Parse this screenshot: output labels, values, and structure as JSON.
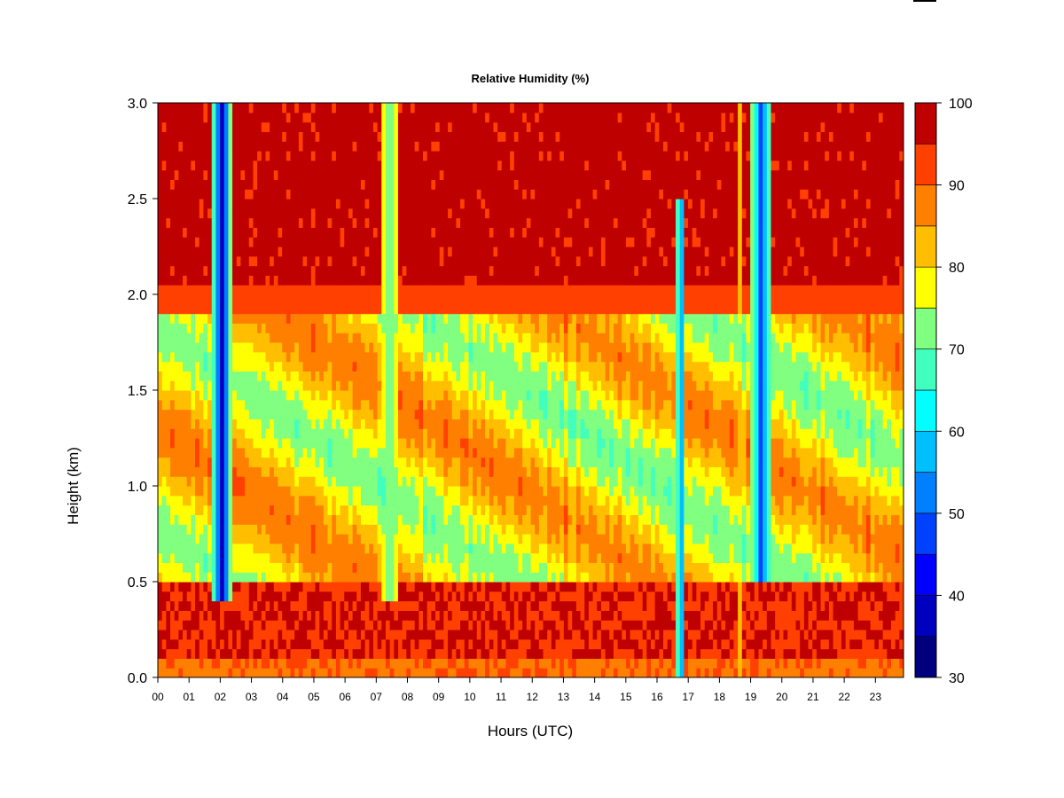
{
  "chart_data": {
    "type": "heatmap",
    "title": "Relative Humidity (%)",
    "xlabel": "Hours (UTC)",
    "ylabel": "Height (km)",
    "xlim": [
      0,
      23.9
    ],
    "ylim": [
      0.0,
      3.0
    ],
    "x_ticks": [
      0,
      1,
      2,
      3,
      4,
      5,
      6,
      7,
      8,
      9,
      10,
      11,
      12,
      13,
      14,
      15,
      16,
      17,
      18,
      19,
      20,
      21,
      22,
      23
    ],
    "x_tick_labels": [
      "00",
      "01",
      "02",
      "03",
      "04",
      "05",
      "06",
      "07",
      "08",
      "09",
      "10",
      "11",
      "12",
      "13",
      "14",
      "15",
      "16",
      "17",
      "18",
      "19",
      "20",
      "21",
      "22",
      "23"
    ],
    "y_ticks": [
      0.0,
      0.5,
      1.0,
      1.5,
      2.0,
      2.5,
      3.0
    ],
    "y_tick_labels": [
      "0.0",
      "0.5",
      "1.0",
      "1.5",
      "2.0",
      "2.5",
      "3.0"
    ],
    "colorbar": {
      "levels": [
        30,
        35,
        40,
        45,
        50,
        55,
        60,
        65,
        70,
        75,
        80,
        85,
        90,
        95,
        100
      ],
      "tick_labels": [
        "30",
        "40",
        "50",
        "60",
        "70",
        "80",
        "90",
        "100"
      ],
      "colors": [
        "#00007f",
        "#0000bf",
        "#0000ff",
        "#0040ff",
        "#0080ff",
        "#00bfff",
        "#00ffff",
        "#40ffbf",
        "#80ff80",
        "#ffff00",
        "#ffbf00",
        "#ff8000",
        "#ff4000",
        "#bf0000",
        "#7f0000"
      ]
    },
    "field_summary": {
      "above_2km": "mostly 95-100",
      "0.5_to_2km": "mostly 75-95",
      "0_to_0.5km": "mostly 90-100",
      "dry_bands": [
        {
          "hour_start": 1.7,
          "hour_end": 2.4,
          "min_rh": 35,
          "height_range_km": [
            0.4,
            3.0
          ]
        },
        {
          "hour_start": 7.2,
          "hour_end": 7.7,
          "min_rh": 70,
          "height_range_km": [
            0.4,
            3.0
          ]
        },
        {
          "hour_start": 16.6,
          "hour_end": 16.9,
          "min_rh": 50,
          "height_range_km": [
            0.0,
            2.5
          ]
        },
        {
          "hour_start": 18.55,
          "hour_end": 18.7,
          "min_rh": 80,
          "height_range_km": [
            0.0,
            3.0
          ]
        },
        {
          "hour_start": 19.0,
          "hour_end": 19.7,
          "min_rh": 45,
          "height_range_km": [
            0.5,
            3.0
          ]
        }
      ]
    }
  }
}
